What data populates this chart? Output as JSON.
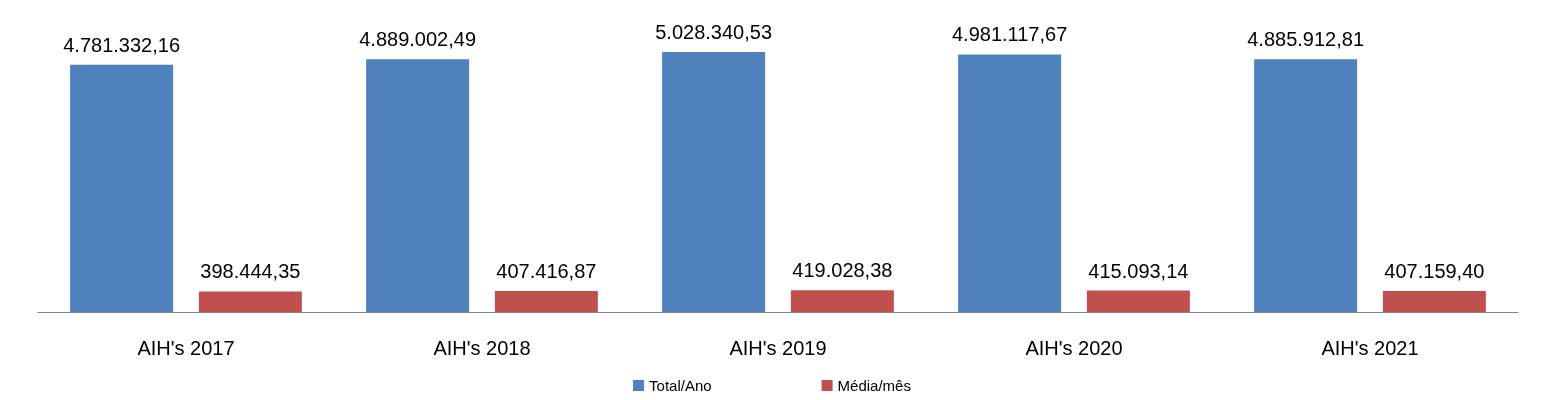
{
  "chart_data": {
    "type": "bar",
    "categories": [
      "AIH's 2017",
      "AIH's 2018",
      "AIH's 2019",
      "AIH's 2020",
      "AIH's 2021"
    ],
    "legend": "bottom",
    "series": [
      {
        "name": "Total/Ano",
        "color": "#4f81bd",
        "values": [
          4781332.16,
          4889002.49,
          5028340.53,
          4981117.67,
          4885912.81
        ],
        "value_labels": [
          "4.781.332,16",
          "4.889.002,49",
          "5.028.340,53",
          "4.981.117,67",
          "4.885.912,81"
        ]
      },
      {
        "name": "Média/mês",
        "color": "#c0504d",
        "values": [
          398444.35,
          407416.87,
          419028.38,
          415093.14,
          407159.4
        ],
        "value_labels": [
          "398.444,35",
          "407.416,87",
          "419.028,38",
          "415.093,14",
          "407.159,40"
        ]
      }
    ]
  }
}
